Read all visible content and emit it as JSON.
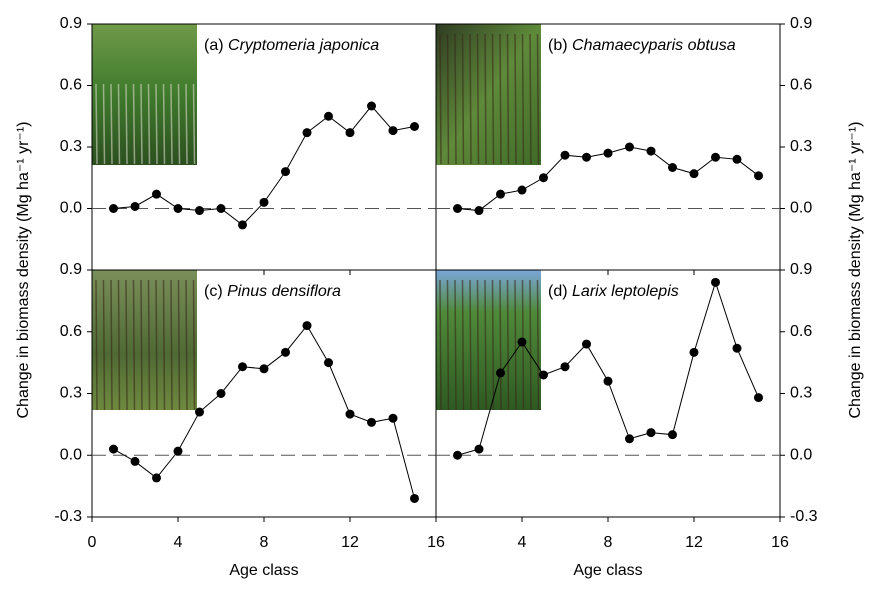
{
  "chart_data": [
    {
      "type": "line",
      "panel_label": "(a)",
      "title": "Cryptomeria japonica",
      "side": "left",
      "row": 0,
      "ylabel": "Change in biomass density (Mg ha⁻¹ yr⁻¹)",
      "x": [
        1,
        2,
        3,
        4,
        5,
        6,
        7,
        8,
        9,
        10,
        11,
        12,
        13,
        14,
        15
      ],
      "values": [
        0.0,
        0.01,
        0.07,
        0.0,
        -0.01,
        0.0,
        -0.08,
        0.03,
        0.18,
        0.37,
        0.45,
        0.37,
        0.5,
        0.38,
        0.4
      ],
      "color": "#000000",
      "hline": 0,
      "xlim": [
        0,
        16
      ],
      "xticks": [
        0,
        4,
        8,
        12,
        16
      ],
      "ylim": [
        -0.3,
        0.9
      ],
      "yticks": [
        {
          "value": 0,
          "label": "0.0"
        },
        0.3,
        0.6,
        0.9
      ]
    },
    {
      "type": "line",
      "panel_label": "(b)",
      "title": "Chamaecyparis obtusa",
      "side": "right",
      "row": 0,
      "ylabel": "Change in biomass density (Mg ha⁻¹ yr⁻¹)",
      "x": [
        1,
        2,
        3,
        4,
        5,
        6,
        7,
        8,
        9,
        10,
        11,
        12,
        13,
        14,
        15
      ],
      "values": [
        0.0,
        -0.01,
        0.07,
        0.09,
        0.15,
        0.26,
        0.25,
        0.27,
        0.3,
        0.28,
        0.2,
        0.17,
        0.25,
        0.24,
        0.16
      ],
      "color": "#000000",
      "hline": 0,
      "xlim": [
        0,
        16
      ],
      "xticks": [
        0,
        4,
        8,
        12,
        16
      ],
      "ylim": [
        -0.3,
        0.9
      ],
      "yticks": [
        {
          "value": 0,
          "label": "0.0"
        },
        0.3,
        0.6,
        0.9
      ]
    },
    {
      "type": "line",
      "panel_label": "(c)",
      "title": "Pinus densiflora",
      "side": "left",
      "row": 1,
      "xlabel": "Age class",
      "x": [
        1,
        2,
        3,
        4,
        5,
        6,
        7,
        8,
        9,
        10,
        11,
        12,
        13,
        14,
        15
      ],
      "values": [
        0.03,
        -0.03,
        -0.11,
        0.02,
        0.21,
        0.3,
        0.43,
        0.42,
        0.5,
        0.63,
        0.45,
        0.2,
        0.16,
        0.18,
        -0.21
      ],
      "color": "#000000",
      "hline": 0,
      "xlim": [
        0,
        16
      ],
      "xticks": [
        0,
        4,
        8,
        12,
        16
      ],
      "ylim": [
        -0.3,
        0.9
      ],
      "yticks": [
        -0.3,
        {
          "value": 0,
          "label": "0.0"
        },
        0.3,
        0.6,
        0.9
      ]
    },
    {
      "type": "line",
      "panel_label": "(d)",
      "title": "Larix leptolepis",
      "side": "right",
      "row": 1,
      "xlabel": "Age class",
      "x": [
        1,
        2,
        3,
        4,
        5,
        6,
        7,
        8,
        9,
        10,
        11,
        12,
        13,
        14,
        15
      ],
      "values": [
        0.0,
        0.03,
        0.4,
        0.55,
        0.39,
        0.43,
        0.54,
        0.36,
        0.08,
        0.11,
        0.1,
        0.5,
        0.84,
        0.52,
        0.28
      ],
      "color": "#000000",
      "hline": 0,
      "xlim": [
        0,
        16
      ],
      "xticks": [
        4,
        8,
        12,
        16
      ],
      "ylim": [
        -0.3,
        0.9
      ],
      "yticks": [
        -0.3,
        {
          "value": 0,
          "label": "0.0"
        },
        0.3,
        0.6,
        0.9
      ]
    }
  ]
}
